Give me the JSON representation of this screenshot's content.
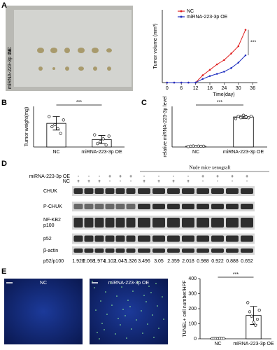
{
  "panel_labels": [
    "A",
    "B",
    "C",
    "D",
    "E"
  ],
  "photo": {
    "rows": [
      "NC",
      "miRNA-223-3p OE"
    ]
  },
  "chart_data": [
    {
      "type": "line",
      "x": [
        0,
        3,
        6,
        9,
        12,
        15,
        18,
        21,
        24,
        27,
        30,
        33
      ],
      "series": [
        {
          "name": "NC",
          "color": "#e02020",
          "values": [
            0,
            0,
            0,
            0,
            0,
            20,
            35,
            50,
            62,
            80,
            100,
            145
          ]
        },
        {
          "name": "miRNA-223-3p OE",
          "color": "#2030c0",
          "values": [
            0,
            0,
            0,
            0,
            0,
            10,
            18,
            24,
            30,
            40,
            55,
            75
          ]
        }
      ],
      "xlim": [
        -2,
        38
      ],
      "xticks": [
        0,
        6,
        12,
        18,
        24,
        30,
        36
      ],
      "ylim": [
        0,
        200
      ],
      "xlabel": "Time(day)",
      "ylabel": "Tumor volume (mm³)",
      "annotation": "***",
      "legend": "top-left"
    },
    {
      "type": "bar",
      "categories": [
        "NC",
        "miRNA-223-3p OE"
      ],
      "values": [
        35,
        11
      ],
      "errors": [
        10,
        6
      ],
      "points": [
        [
          45,
          30,
          33,
          27,
          20,
          40
        ],
        [
          18,
          5,
          8,
          12,
          3,
          16
        ]
      ],
      "ylim": [
        0,
        60
      ],
      "ylabel": "Tumor weight(mg)",
      "annotation": "***",
      "color": "#ffffff"
    },
    {
      "type": "bar",
      "categories": [
        "NC",
        "miRNA-223-3p OE"
      ],
      "values": [
        1,
        37
      ],
      "errors": [
        0.5,
        2
      ],
      "points": [
        [
          0.5,
          1,
          1.2,
          0.8,
          1.1,
          0.9,
          1
        ],
        [
          35,
          38,
          36,
          39,
          37,
          36,
          38
        ]
      ],
      "ylim": [
        0,
        50
      ],
      "ylabel": "relative miRNA-223-3p level",
      "annotation": "***",
      "color": "#ffffff"
    },
    {
      "type": "bar",
      "categories": [
        "NC",
        "miRNA-223-3p OE"
      ],
      "values": [
        2,
        155
      ],
      "errors": [
        1,
        60
      ],
      "points": [
        [
          1,
          2,
          2,
          1,
          3,
          2,
          2
        ],
        [
          240,
          180,
          150,
          110,
          90,
          130,
          190
        ]
      ],
      "ylim": [
        0,
        400
      ],
      "yticks": [
        0,
        100,
        200,
        300,
        400
      ],
      "ylabel": "TUNEL+ cell number/HPF",
      "annotation": "***",
      "color": "#ffffff"
    }
  ],
  "blot": {
    "title": "Nude mice xenograft",
    "rows": [
      {
        "label": "miRNA-223-3p OE",
        "marks": [
          "-",
          "-",
          "-",
          "+",
          "+",
          "+",
          "-",
          "-",
          "-",
          "-",
          "+",
          "+",
          "+",
          "+"
        ]
      },
      {
        "label": "NC",
        "marks": [
          "+",
          "+",
          "+",
          "-",
          "-",
          "-",
          "+",
          "+",
          "+",
          "+",
          "-",
          "-",
          "-",
          "-"
        ]
      }
    ],
    "bands": [
      "CHUK",
      "P-CHUK",
      "NF-KB2\np100",
      "p52",
      "β-actin"
    ],
    "ratio_label": "p52/p100",
    "ratios": [
      1.928,
      2.068,
      1.974,
      1.102,
      1.047,
      1.326,
      3.496,
      3.05,
      2.359,
      2.018,
      0.988,
      0.922,
      0.888,
      0.652
    ]
  },
  "micrographs": {
    "labels": [
      "NC",
      "miRNA-223-3p OE"
    ]
  }
}
